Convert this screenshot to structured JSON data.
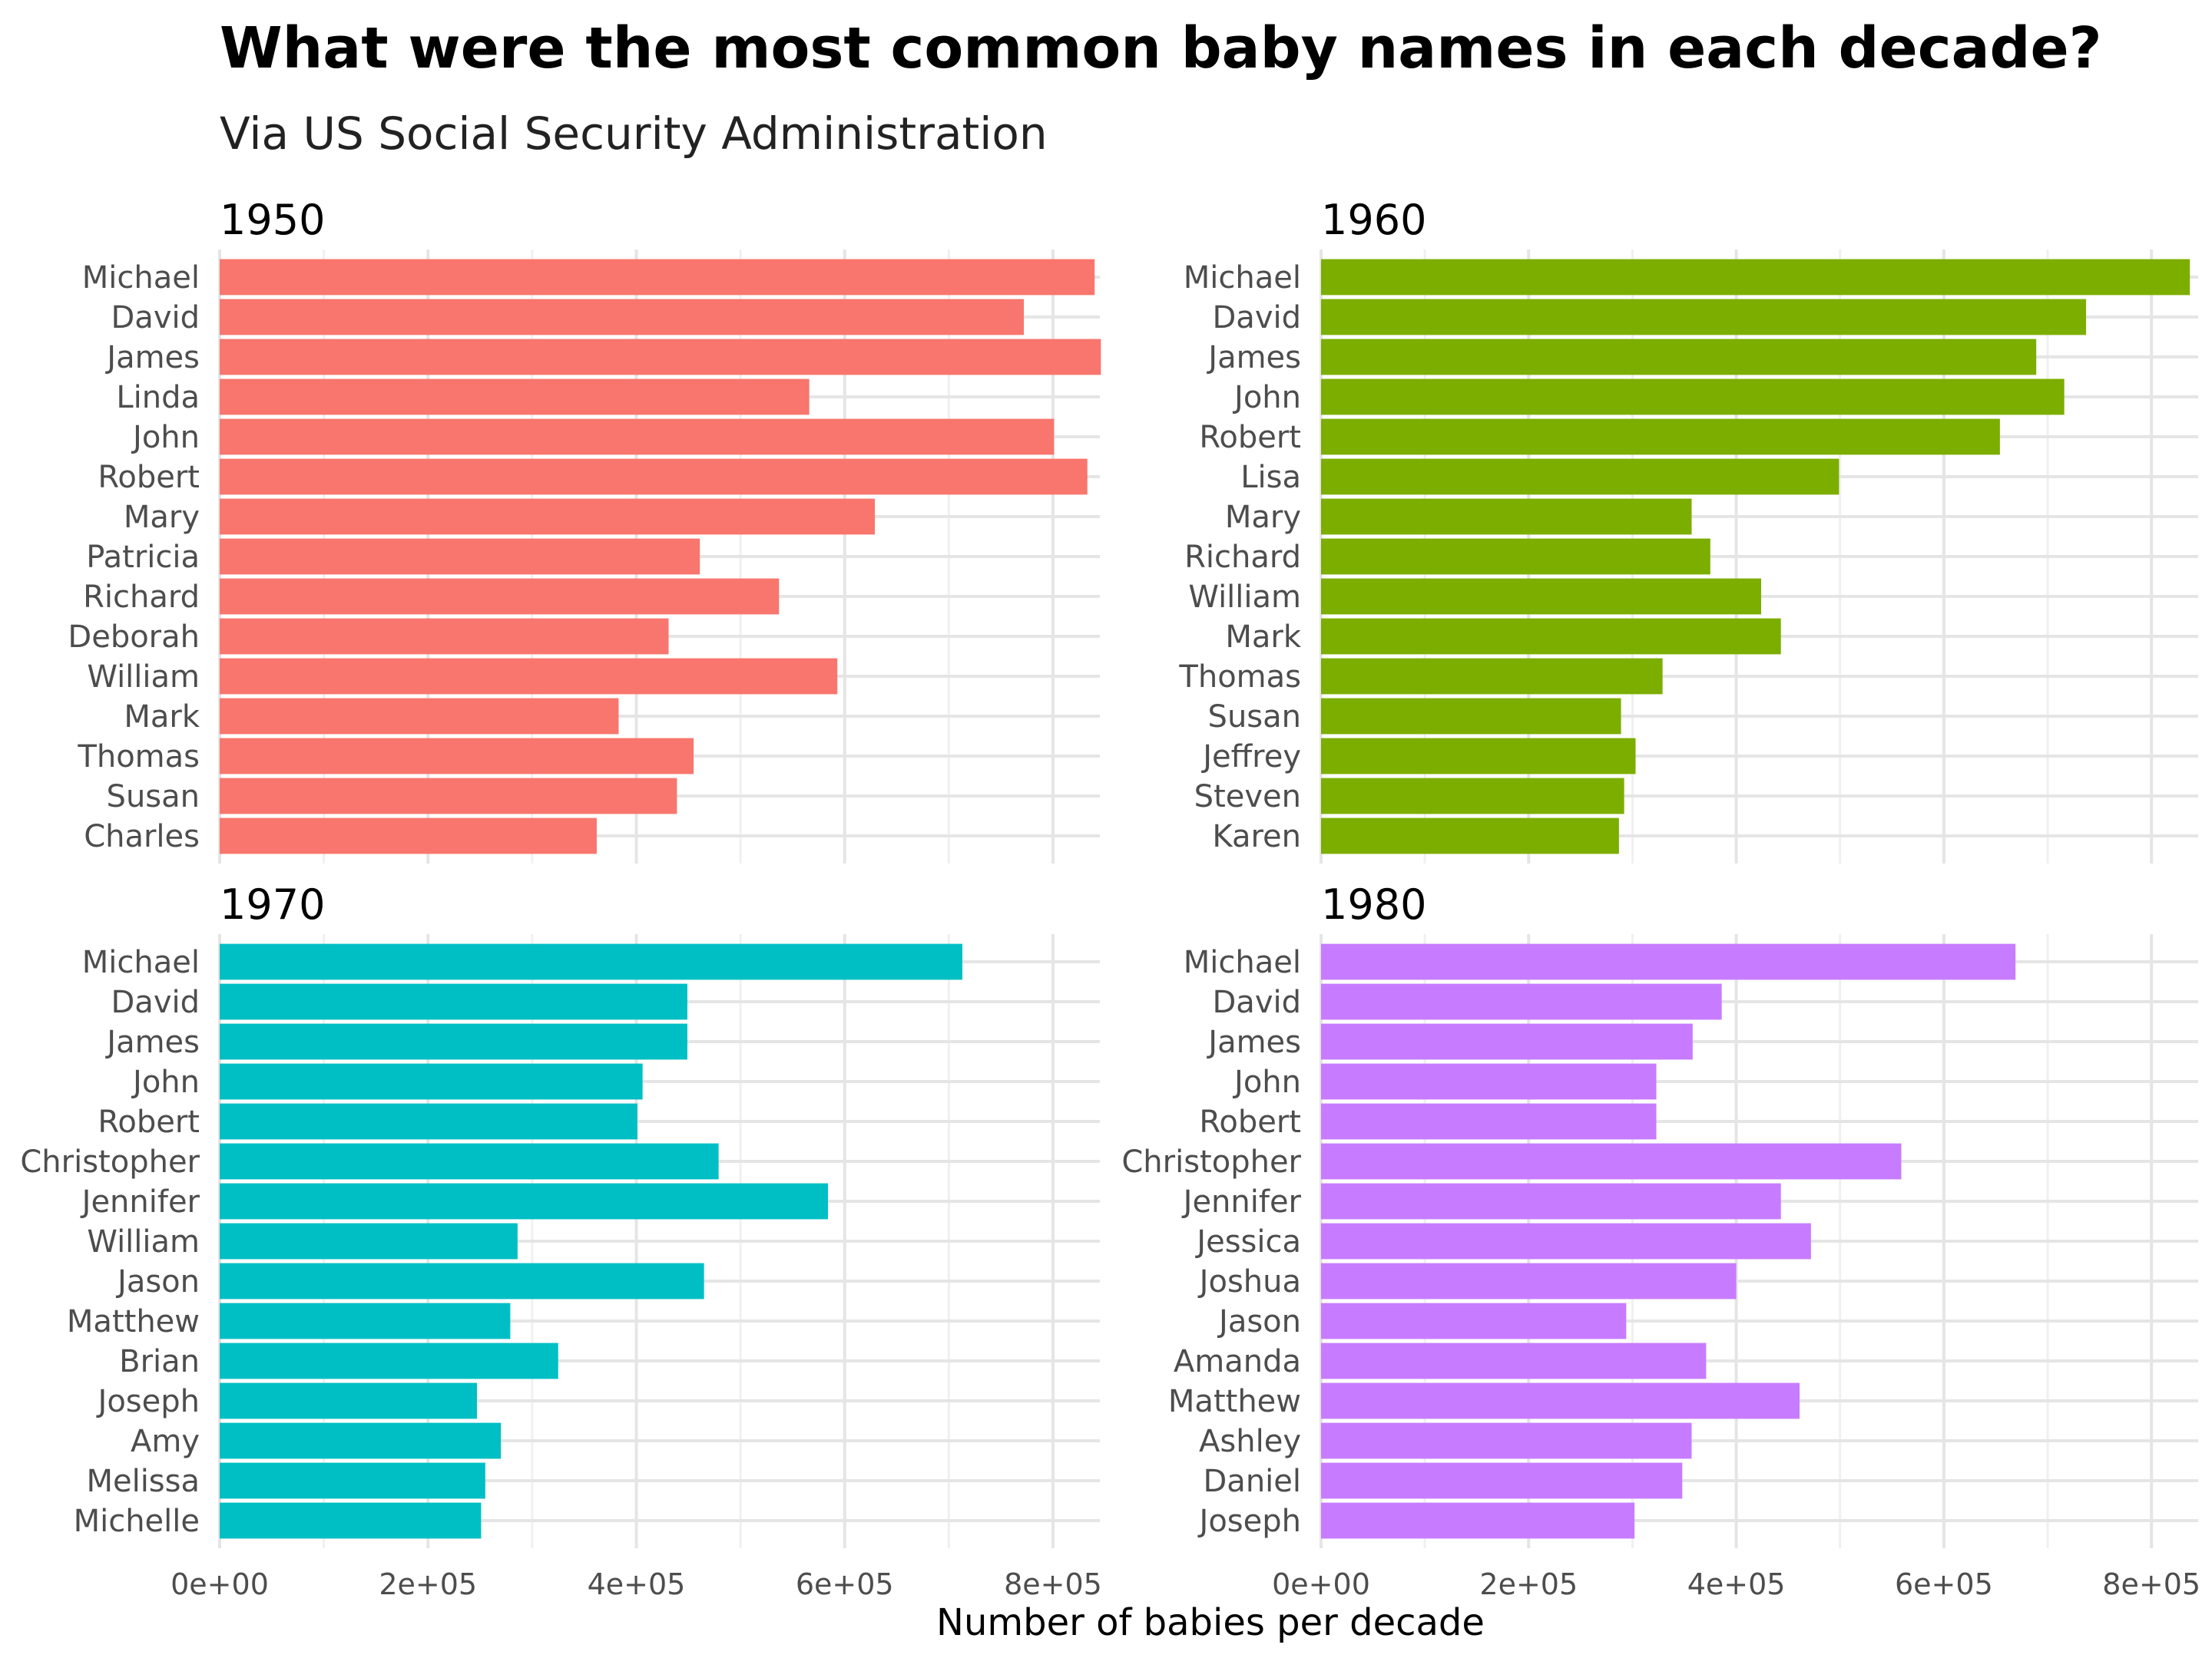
{
  "chart_data": {
    "type": "bar",
    "orientation": "horizontal",
    "title": "What were the most common baby names in each decade?",
    "subtitle": "Via US Social Security Administration",
    "xlabel": "Number of babies per decade",
    "ylabel": "",
    "xlim": [
      0,
      845000
    ],
    "x_ticks": [
      "0e+00",
      "2e+05",
      "4e+05",
      "6e+05",
      "8e+05"
    ],
    "x_tick_values": [
      0,
      200000,
      400000,
      600000,
      800000
    ],
    "grid": true,
    "legend": "none",
    "panels": [
      {
        "label": "1950",
        "color": "#F8766D",
        "categories": [
          "Michael",
          "David",
          "James",
          "Linda",
          "John",
          "Robert",
          "Mary",
          "Patricia",
          "Richard",
          "Deborah",
          "William",
          "Mark",
          "Thomas",
          "Susan",
          "Charles"
        ],
        "values": [
          840000,
          772000,
          846000,
          566000,
          801000,
          833000,
          629000,
          461000,
          537000,
          431000,
          593000,
          383000,
          455000,
          439000,
          362000
        ]
      },
      {
        "label": "1960",
        "color": "#7CAE00",
        "categories": [
          "Michael",
          "David",
          "James",
          "John",
          "Robert",
          "Lisa",
          "Mary",
          "Richard",
          "William",
          "Mark",
          "Thomas",
          "Susan",
          "Jeffrey",
          "Steven",
          "Karen"
        ],
        "values": [
          837000,
          737000,
          689000,
          716000,
          654000,
          499000,
          357000,
          375000,
          424000,
          443000,
          329000,
          289000,
          303000,
          292000,
          287000
        ]
      },
      {
        "label": "1970",
        "color": "#00BFC4",
        "categories": [
          "Michael",
          "David",
          "James",
          "John",
          "Robert",
          "Christopher",
          "Jennifer",
          "William",
          "Jason",
          "Matthew",
          "Brian",
          "Joseph",
          "Amy",
          "Melissa",
          "Michelle"
        ],
        "values": [
          713000,
          449000,
          449000,
          406000,
          401000,
          479000,
          584000,
          286000,
          465000,
          279000,
          325000,
          247000,
          270000,
          255000,
          251000
        ]
      },
      {
        "label": "1980",
        "color": "#C77CFF",
        "categories": [
          "Michael",
          "David",
          "James",
          "John",
          "Robert",
          "Christopher",
          "Jennifer",
          "Jessica",
          "Joshua",
          "Jason",
          "Amanda",
          "Matthew",
          "Ashley",
          "Daniel",
          "Joseph"
        ],
        "values": [
          669000,
          386000,
          358000,
          323000,
          323000,
          559000,
          443000,
          472000,
          400000,
          294000,
          371000,
          461000,
          357000,
          348000,
          302000
        ]
      }
    ]
  }
}
